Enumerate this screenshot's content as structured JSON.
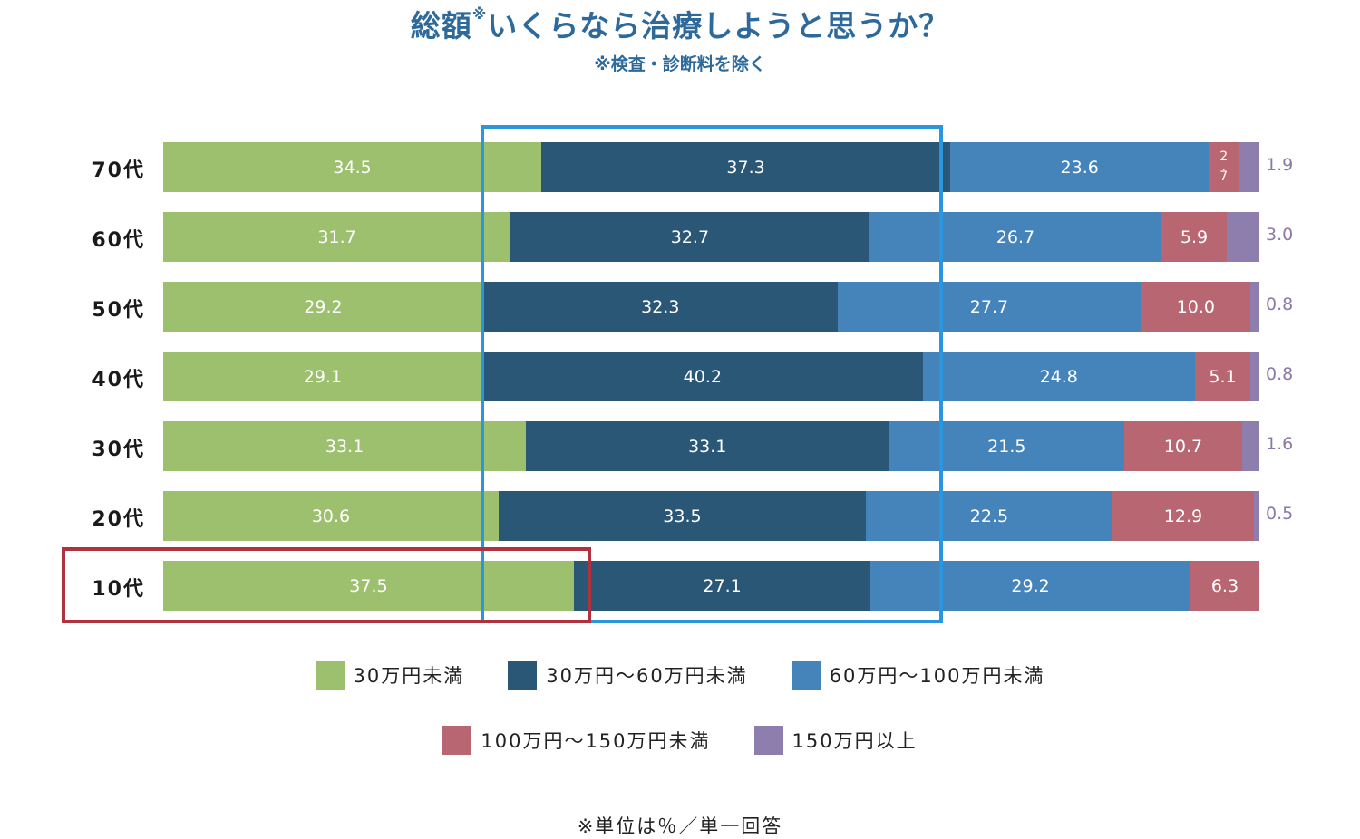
{
  "header": {
    "title": "総額いくらなら治療しようと思うか？",
    "title_main": "総額",
    "title_mark": "※",
    "title_rest": "いくらなら治療しようと思うか？",
    "subtitle": "※検査・診断料を除く"
  },
  "colors": {
    "under30": "#9dc06f",
    "30to60": "#2b5777",
    "60to100": "#4584bb",
    "100to150": "#b86672",
    "over150": "#8e7eae",
    "highlight_blue": "#2c95e0",
    "highlight_red": "#b0323f",
    "title": "#2d6a9b"
  },
  "footnote": "※単位は％／単一回答",
  "chart_data": {
    "type": "bar",
    "orientation": "horizontal",
    "stacked": true,
    "title": "総額※いくらなら治療しようと思うか？",
    "subtitle": "※検査・診断料を除く",
    "xlabel": "",
    "ylabel": "",
    "unit": "%",
    "categories": [
      "70代",
      "60代",
      "50代",
      "40代",
      "30代",
      "20代",
      "10代"
    ],
    "series": [
      {
        "name": "30万円未満",
        "color": "#9dc06f",
        "values": [
          34.5,
          31.7,
          29.2,
          29.1,
          33.1,
          30.6,
          37.5
        ]
      },
      {
        "name": "30万円〜60万円未満",
        "color": "#2b5777",
        "values": [
          37.3,
          32.7,
          32.3,
          40.2,
          33.1,
          33.5,
          27.1
        ]
      },
      {
        "name": "60万円〜100万円未満",
        "color": "#4584bb",
        "values": [
          23.6,
          26.7,
          27.7,
          24.8,
          21.5,
          22.5,
          29.2
        ]
      },
      {
        "name": "100万円〜150万円未満",
        "color": "#b86672",
        "values": [
          2.7,
          5.9,
          10.0,
          5.1,
          10.7,
          12.9,
          6.3
        ]
      },
      {
        "name": "150万円以上",
        "color": "#8e7eae",
        "values": [
          1.9,
          3.0,
          0.8,
          0.8,
          1.6,
          0.5,
          0
        ]
      }
    ],
    "labels": {
      "rows": [
        [
          "34.5",
          "37.3",
          "23.6",
          "2.7",
          "1.9"
        ],
        [
          "31.7",
          "32.7",
          "26.7",
          "5.9",
          "3.0"
        ],
        [
          "29.2",
          "32.3",
          "27.7",
          "10.0",
          "0.8"
        ],
        [
          "29.1",
          "40.2",
          "24.8",
          "5.1",
          "0.8"
        ],
        [
          "33.1",
          "33.1",
          "21.5",
          "10.7",
          "1.6"
        ],
        [
          "30.6",
          "33.5",
          "22.5",
          "12.9",
          "0.5"
        ],
        [
          "37.5",
          "27.1",
          "29.2",
          "6.3",
          ""
        ]
      ]
    },
    "annotations": [
      "Blue box highlights the 30万円〜60万円未満 band across all ages",
      "Red box highlights the 10代 row's 30万円未満 segment"
    ],
    "legend_position": "bottom",
    "grid": false,
    "xlim": [
      0,
      100
    ]
  },
  "legend": {
    "row1": [
      "30万円未満",
      "30万円〜60万円未満",
      "60万円〜100万円未満"
    ],
    "row2": [
      "100万円〜150万円未満",
      "150万円以上"
    ]
  }
}
